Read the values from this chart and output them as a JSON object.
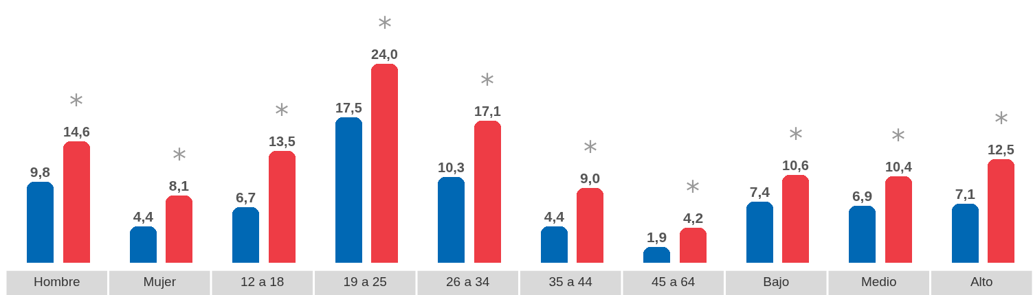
{
  "chart_data": {
    "type": "bar",
    "categories": [
      "Hombre",
      "Mujer",
      "12 a 18",
      "19 a 25",
      "26 a 34",
      "35 a 44",
      "45 a 64",
      "Bajo",
      "Medio",
      "Alto"
    ],
    "series": [
      {
        "color": "#0068b4",
        "values": [
          9.8,
          4.4,
          6.7,
          17.5,
          10.3,
          4.4,
          1.9,
          7.4,
          6.9,
          7.1
        ],
        "value_labels": [
          "9,8",
          "4,4",
          "6,7",
          "17,5",
          "10,3",
          "4,4",
          "1,9",
          "7,4",
          "6,9",
          "7,1"
        ]
      },
      {
        "color": "#ee3c45",
        "values": [
          14.6,
          8.1,
          13.5,
          24.0,
          17.1,
          9.0,
          4.2,
          10.6,
          10.4,
          12.5
        ],
        "value_labels": [
          "14,6",
          "8,1",
          "13,5",
          "24,0",
          "17,1",
          "9,0",
          "4,2",
          "10,6",
          "10,4",
          "12,5"
        ]
      }
    ],
    "annotations": [
      "*",
      "*",
      "*",
      "*",
      "*",
      "*",
      "*",
      "*",
      "*",
      "*"
    ],
    "grid": false
  }
}
